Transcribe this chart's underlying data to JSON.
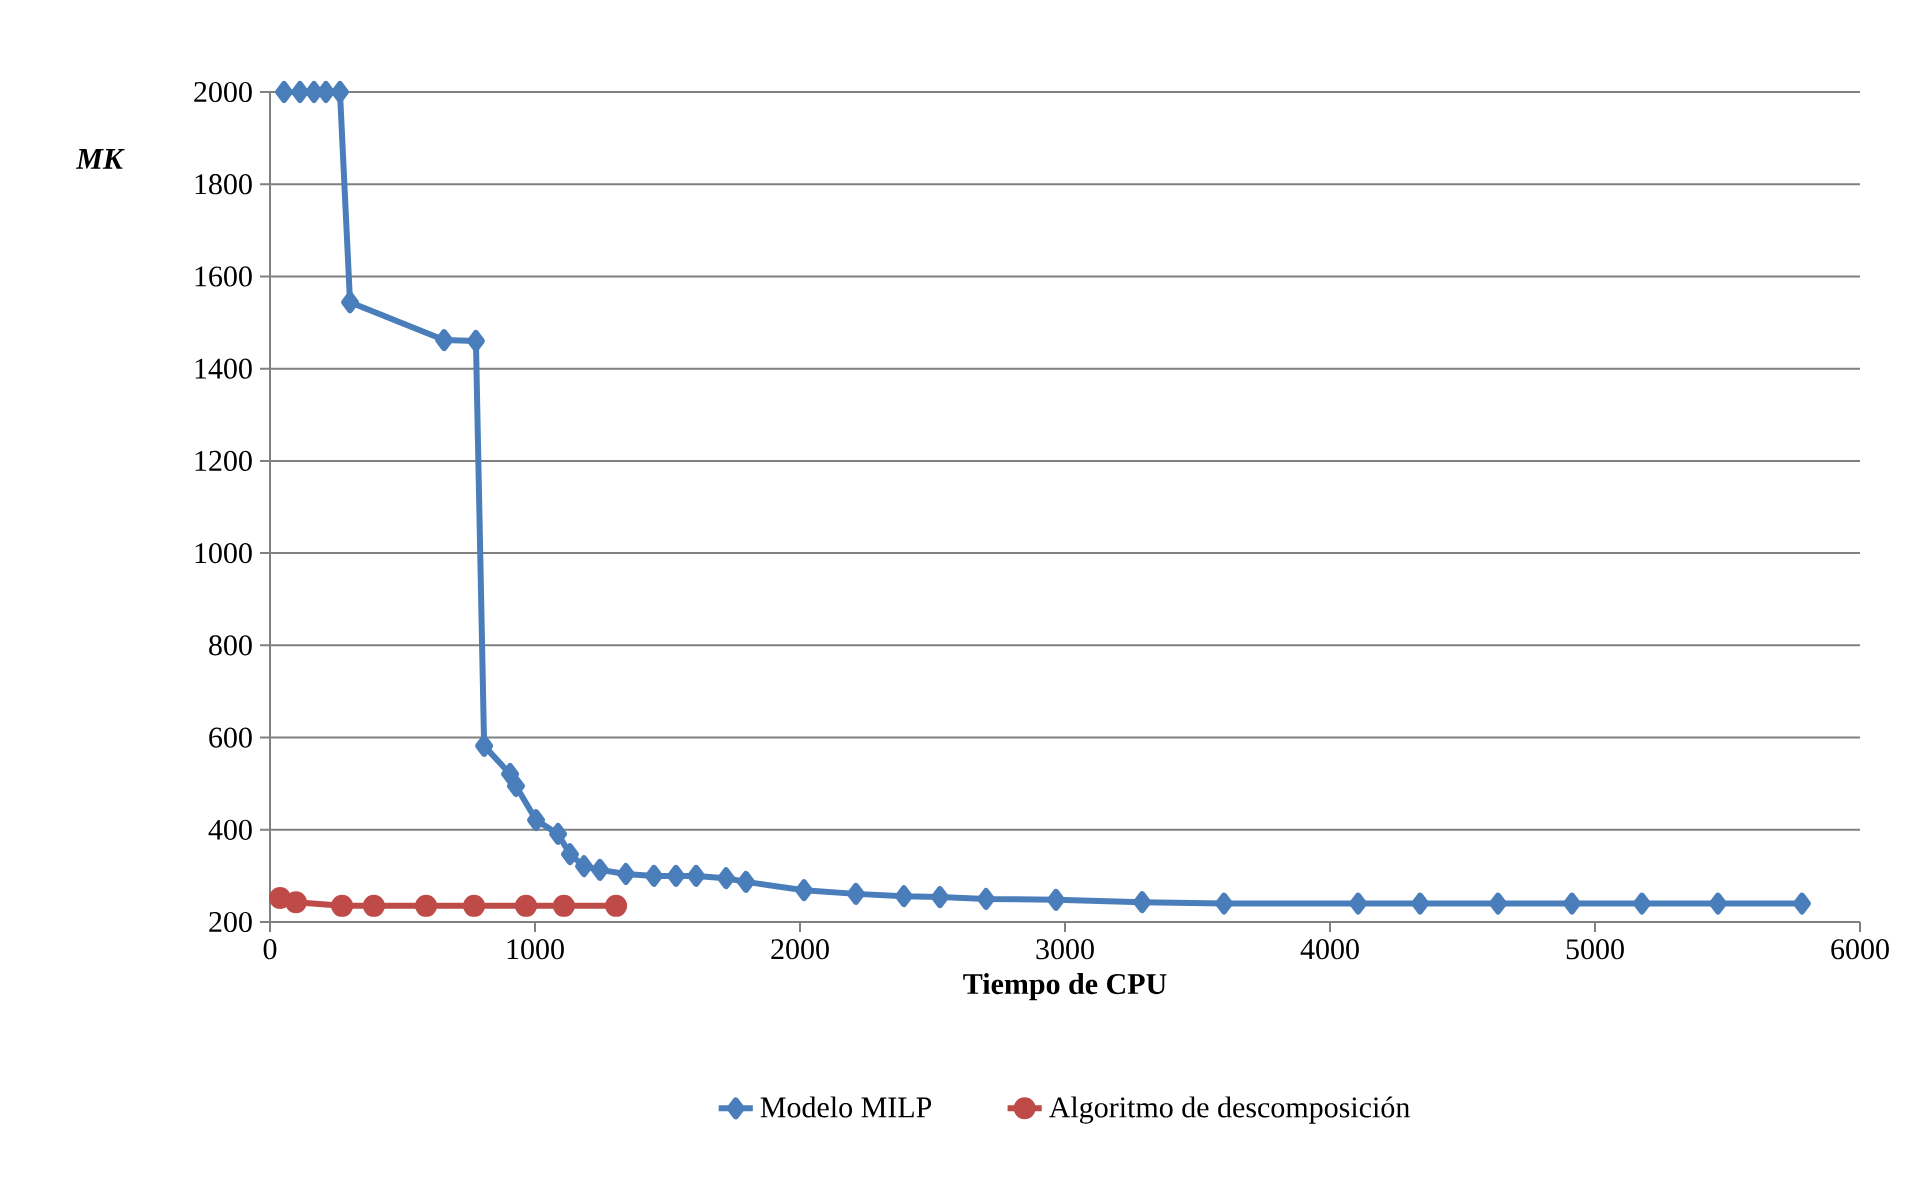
{
  "chart_data": {
    "type": "line",
    "xlabel": "Tiempo de CPU",
    "ylabel": "MK",
    "xlim": [
      0,
      6000
    ],
    "xticks": [
      0,
      1000,
      2000,
      3000,
      4000,
      5000,
      6000
    ],
    "ylim": [
      200,
      2000
    ],
    "yticks": [
      200,
      400,
      600,
      800,
      1000,
      1200,
      1400,
      1600,
      1800,
      2000
    ],
    "grid": "y",
    "legend": "bottom",
    "series": [
      {
        "name": "Modelo MILP",
        "color": "#4a7ebb",
        "marker": "diamond",
        "x": [
          53,
          113,
          166,
          211,
          264,
          302,
          657,
          777,
          808,
          906,
          928,
          1004,
          1087,
          1132,
          1185,
          1245,
          1343,
          1449,
          1532,
          1608,
          1721,
          1796,
          2015,
          2211,
          2392,
          2528,
          2702,
          2966,
          3291,
          3600,
          4106,
          4340,
          4634,
          4913,
          5177,
          5464,
          5781
        ],
        "values": [
          2000,
          2000,
          2000,
          2000,
          2000,
          1544,
          1462,
          1460,
          582,
          521,
          495,
          421,
          391,
          347,
          321,
          313,
          304,
          300,
          300,
          300,
          295,
          287,
          269,
          261,
          256,
          254,
          250,
          248,
          243,
          240,
          240,
          240,
          240,
          240,
          240,
          240,
          240
        ]
      },
      {
        "name": "Algoritmo de descomposición",
        "color": "#be4b48",
        "marker": "circle",
        "x": [
          38,
          98,
          272,
          392,
          589,
          770,
          966,
          1109,
          1306
        ],
        "values": [
          252,
          243,
          235,
          235,
          235,
          235,
          235,
          235,
          235
        ]
      }
    ]
  }
}
